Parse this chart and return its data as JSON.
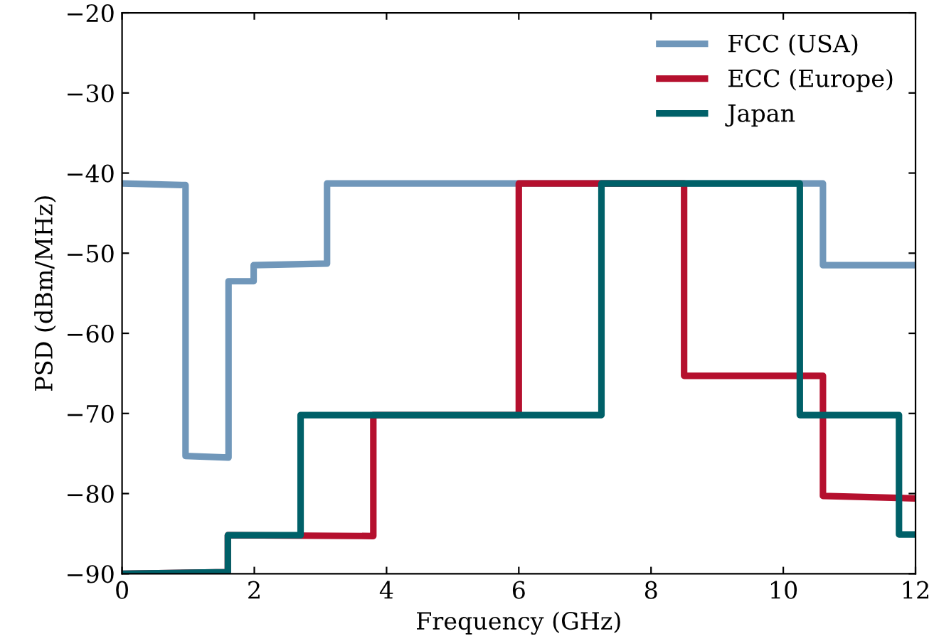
{
  "chart_data": {
    "type": "line",
    "xlabel": "Frequency (GHz)",
    "ylabel": "PSD (dBm/MHz)",
    "xlim": [
      0,
      12
    ],
    "xticks": [
      0,
      2,
      4,
      6,
      8,
      10,
      12
    ],
    "ylim": [
      -90,
      -20
    ],
    "yticks": [
      -90,
      -80,
      -70,
      -60,
      -50,
      -40,
      -30,
      -20
    ],
    "legend": "top right",
    "grid": false,
    "series": [
      {
        "name": "FCC (USA)",
        "color": "#7097ba",
        "x": [
          0,
          0.96,
          0.96,
          1.61,
          1.61,
          1.99,
          1.99,
          3.1,
          3.1,
          10.6,
          10.6,
          12
        ],
        "values": [
          -41.3,
          -41.5,
          -75.3,
          -75.5,
          -53.5,
          -53.5,
          -51.5,
          -51.3,
          -41.3,
          -41.3,
          -51.5,
          -51.5
        ]
      },
      {
        "name": "ECC (Europe)",
        "color": "#b5102e",
        "x": [
          0,
          1.6,
          1.6,
          3.8,
          3.8,
          6,
          6,
          8.5,
          8.5,
          10.6,
          10.6,
          12
        ],
        "values": [
          -90,
          -89.8,
          -85.2,
          -85.3,
          -70.2,
          -70.2,
          -41.3,
          -41.3,
          -65.3,
          -65.3,
          -80.3,
          -80.6
        ]
      },
      {
        "name": "Japan",
        "color": "#006068",
        "x": [
          0,
          1.6,
          1.6,
          2.7,
          2.7,
          7.25,
          7.25,
          10.25,
          10.25,
          11.75,
          11.75,
          12
        ],
        "values": [
          -90,
          -89.8,
          -85.2,
          -85.2,
          -70.2,
          -70.2,
          -41.3,
          -41.3,
          -70.2,
          -70.2,
          -85.1,
          -85.1
        ]
      }
    ]
  }
}
